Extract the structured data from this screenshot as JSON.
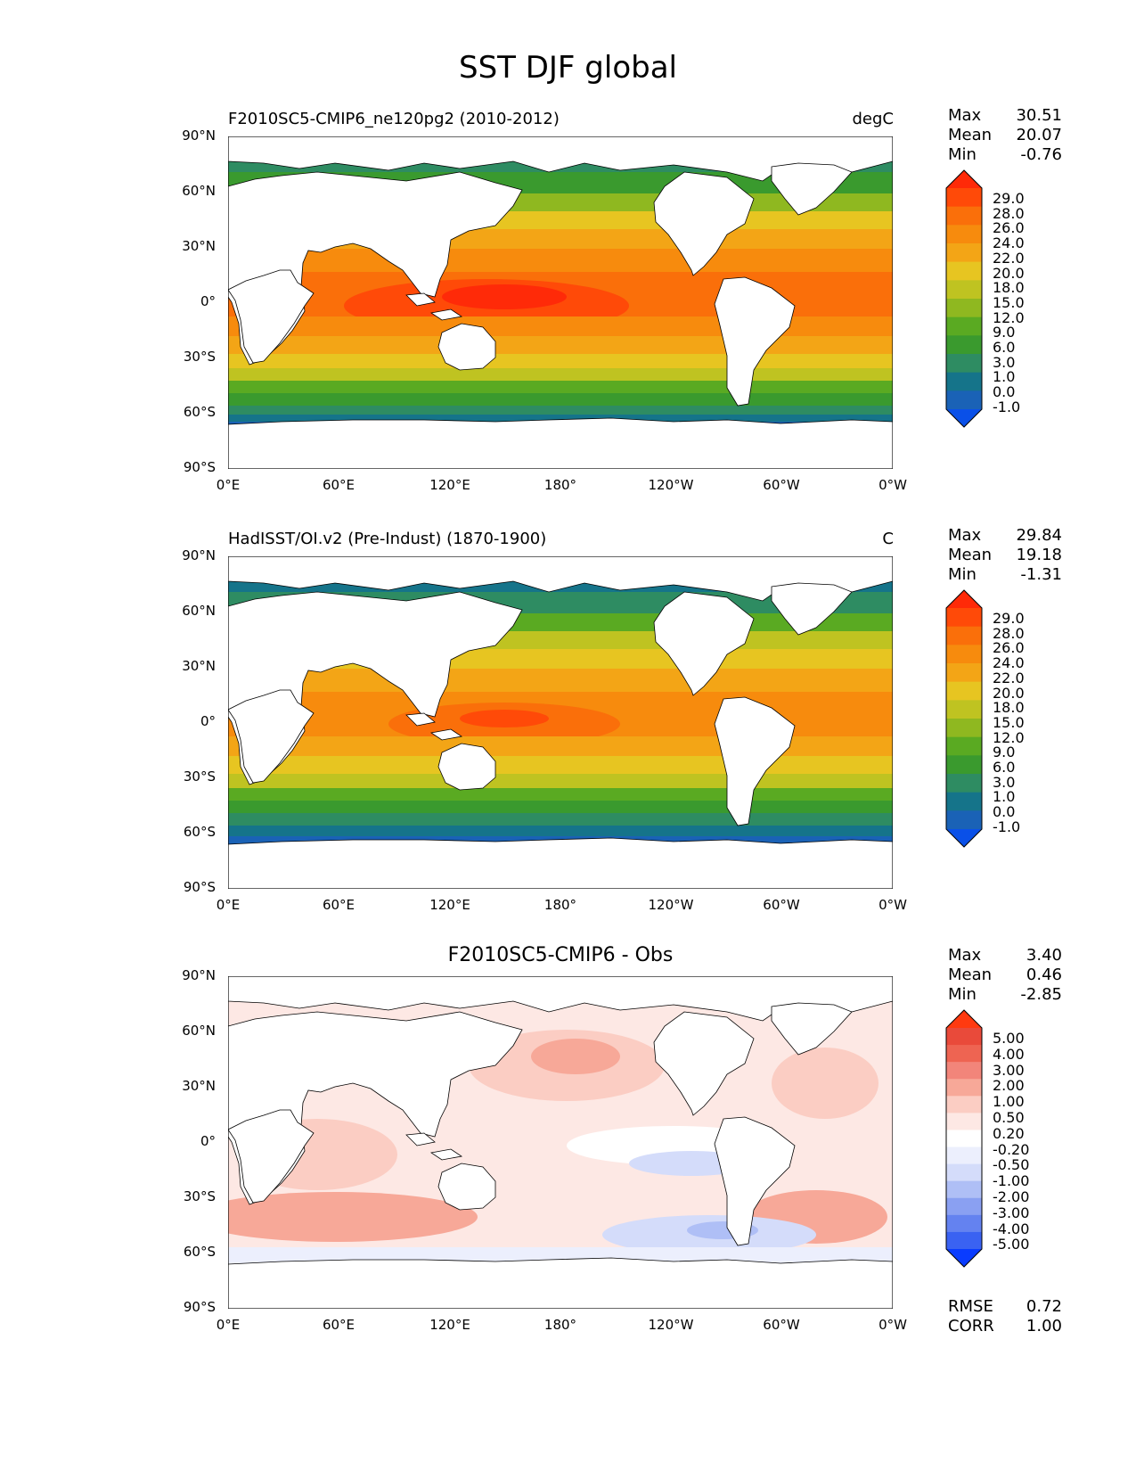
{
  "figure_title": "SST DJF global",
  "x_ticks": [
    "0°E",
    "60°E",
    "120°E",
    "180°",
    "120°W",
    "60°W",
    "0°W"
  ],
  "y_ticks": [
    "90°N",
    "60°N",
    "30°N",
    "0°",
    "30°S",
    "60°S",
    "90°S"
  ],
  "colors": {
    "sst_palette": [
      "#0a50e8",
      "#1a62b6",
      "#15748a",
      "#2e8c62",
      "#3a9a2e",
      "#5aaa22",
      "#8fb820",
      "#bfc321",
      "#e7c521",
      "#f3a516",
      "#f78b0d",
      "#fa6f0a",
      "#ff4a08",
      "#ff2a08"
    ],
    "diff_palette": [
      "#0a3cff",
      "#3a62f2",
      "#6482f0",
      "#8aa0f2",
      "#afbff6",
      "#d4dcfa",
      "#eceffd",
      "#ffffff",
      "#fde8e4",
      "#fbcdc3",
      "#f7a898",
      "#f2857a",
      "#ee6452",
      "#e94a3a",
      "#ff3a10"
    ],
    "land": "#ffffff",
    "coast": "#000000"
  },
  "panels": [
    {
      "left_title": "F2010SC5-CMIP6_ne120pg2 (2010-2012)",
      "units": "degC",
      "stats": {
        "max_label": "Max",
        "max": "30.51",
        "mean_label": "Mean",
        "mean": "20.07",
        "min_label": "Min",
        "min": "-0.76"
      },
      "colorbar_labels": [
        "29.0",
        "28.0",
        "26.0",
        "24.0",
        "22.0",
        "20.0",
        "18.0",
        "15.0",
        "12.0",
        "9.0",
        "6.0",
        "3.0",
        "1.0",
        "0.0",
        "-1.0"
      ]
    },
    {
      "left_title": "HadISST/OI.v2 (Pre-Indust) (1870-1900)",
      "units": "C",
      "stats": {
        "max_label": "Max",
        "max": "29.84",
        "mean_label": "Mean",
        "mean": "19.18",
        "min_label": "Min",
        "min": "-1.31"
      },
      "colorbar_labels": [
        "29.0",
        "28.0",
        "26.0",
        "24.0",
        "22.0",
        "20.0",
        "18.0",
        "15.0",
        "12.0",
        "9.0",
        "6.0",
        "3.0",
        "1.0",
        "0.0",
        "-1.0"
      ]
    },
    {
      "center_title": "F2010SC5-CMIP6 - Obs",
      "stats": {
        "max_label": "Max",
        "max": "3.40",
        "mean_label": "Mean",
        "mean": "0.46",
        "min_label": "Min",
        "min": "-2.85"
      },
      "colorbar_labels": [
        "5.00",
        "4.00",
        "3.00",
        "2.00",
        "1.00",
        "0.50",
        "0.20",
        "-0.20",
        "-0.50",
        "-1.00",
        "-2.00",
        "-3.00",
        "-4.00",
        "-5.00"
      ],
      "rmse_label": "RMSE",
      "rmse": "0.72",
      "corr_label": "CORR",
      "corr": "1.00"
    }
  ]
}
